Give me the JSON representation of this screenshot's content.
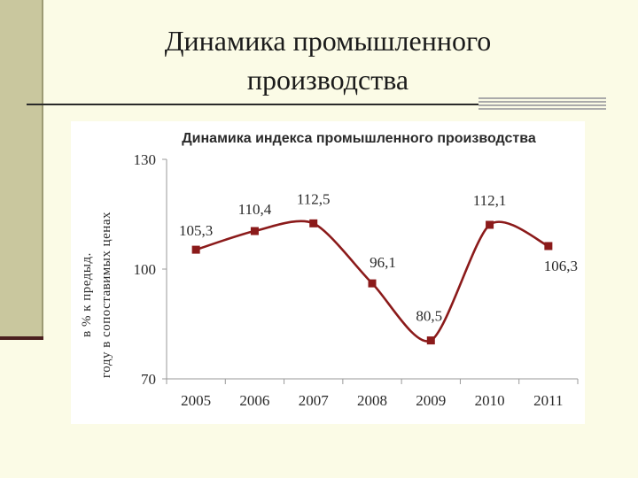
{
  "slide": {
    "title_line1": "Динамика промышленного",
    "title_line2": "производства"
  },
  "colors": {
    "series": "#8B1A1A",
    "background": "#FBFBE6",
    "strip": "#C9C79E"
  },
  "chart_data": {
    "type": "line",
    "title": "Динамика индекса промышленного производства",
    "ylabel": [
      "в % к предыд.",
      "году в сопоставимых ценах"
    ],
    "xlabel": "",
    "categories": [
      "2005",
      "2006",
      "2007",
      "2008",
      "2009",
      "2010",
      "2011"
    ],
    "series": [
      {
        "values": [
          105.3,
          110.4,
          112.5,
          96.1,
          80.5,
          112.1,
          106.3
        ],
        "labels": [
          "105,3",
          "110,4",
          "112,5",
          "96,1",
          "80,5",
          "112,1",
          "106,3"
        ],
        "color": "#8B1A1A",
        "smooth": true,
        "marker": "square"
      }
    ],
    "ylim": [
      70,
      130
    ],
    "yticks": [
      130,
      100,
      70
    ],
    "ytick_labels": [
      "130",
      "100",
      "70"
    ],
    "grid": false,
    "legend": "none"
  }
}
